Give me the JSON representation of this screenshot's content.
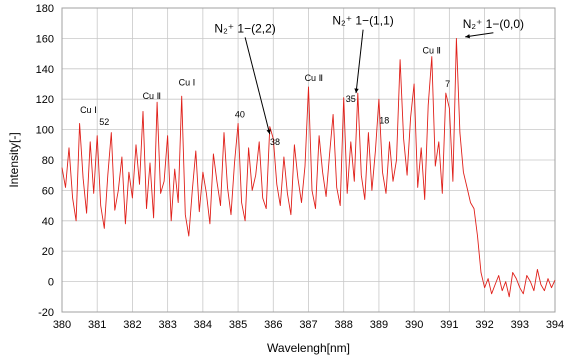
{
  "chart_data": {
    "type": "line",
    "title": "",
    "xlabel": "Wavelengh[nm]",
    "ylabel": "Intensity[-]",
    "xlim": [
      380,
      394
    ],
    "ylim": [
      -20,
      180
    ],
    "xticks": [
      380,
      381,
      382,
      383,
      384,
      385,
      386,
      387,
      388,
      389,
      390,
      391,
      392,
      393,
      394
    ],
    "yticks": [
      -20,
      0,
      20,
      40,
      60,
      80,
      100,
      120,
      140,
      160,
      180
    ],
    "grid": true,
    "legend": "none",
    "series_color": "#e0201a",
    "series": [
      {
        "name": "",
        "x": [
          380.0,
          380.1,
          380.2,
          380.3,
          380.4,
          380.5,
          380.6,
          380.7,
          380.8,
          380.9,
          381.0,
          381.1,
          381.2,
          381.3,
          381.4,
          381.5,
          381.6,
          381.7,
          381.8,
          381.9,
          382.0,
          382.1,
          382.2,
          382.3,
          382.4,
          382.5,
          382.6,
          382.7,
          382.8,
          382.9,
          383.0,
          383.1,
          383.2,
          383.3,
          383.4,
          383.5,
          383.6,
          383.7,
          383.8,
          383.9,
          384.0,
          384.1,
          384.2,
          384.3,
          384.4,
          384.5,
          384.6,
          384.7,
          384.8,
          384.9,
          385.0,
          385.1,
          385.2,
          385.3,
          385.4,
          385.5,
          385.6,
          385.7,
          385.8,
          385.9,
          386.0,
          386.1,
          386.2,
          386.3,
          386.4,
          386.5,
          386.6,
          386.7,
          386.8,
          386.9,
          387.0,
          387.1,
          387.2,
          387.3,
          387.4,
          387.5,
          387.6,
          387.7,
          387.8,
          387.9,
          388.0,
          388.1,
          388.2,
          388.3,
          388.4,
          388.5,
          388.6,
          388.7,
          388.8,
          388.9,
          389.0,
          389.1,
          389.2,
          389.3,
          389.4,
          389.5,
          389.6,
          389.7,
          389.8,
          389.9,
          390.0,
          390.1,
          390.2,
          390.3,
          390.4,
          390.5,
          390.6,
          390.7,
          390.8,
          390.9,
          391.0,
          391.1,
          391.2,
          391.3,
          391.4,
          391.5,
          391.6,
          391.7,
          391.8,
          391.9,
          392.0,
          392.1,
          392.2,
          392.3,
          392.4,
          392.5,
          392.6,
          392.7,
          392.8,
          392.9,
          393.0,
          393.1,
          393.2,
          393.3,
          393.4,
          393.5,
          393.6,
          393.7,
          393.8,
          393.9,
          394.0
        ],
        "y": [
          75,
          62,
          88,
          55,
          40,
          104,
          68,
          45,
          92,
          58,
          96,
          50,
          35,
          70,
          98,
          47,
          60,
          82,
          38,
          72,
          55,
          90,
          64,
          112,
          48,
          78,
          42,
          118,
          58,
          66,
          96,
          40,
          74,
          52,
          122,
          44,
          30,
          60,
          86,
          46,
          72,
          58,
          38,
          84,
          66,
          50,
          98,
          62,
          44,
          78,
          104,
          52,
          40,
          88,
          60,
          70,
          92,
          55,
          48,
          102,
          94,
          64,
          50,
          82,
          58,
          44,
          90,
          68,
          52,
          76,
          128,
          60,
          48,
          96,
          72,
          56,
          84,
          110,
          62,
          50,
          121,
          58,
          92,
          66,
          124,
          70,
          54,
          98,
          60,
          86,
          120,
          72,
          58,
          92,
          66,
          80,
          146,
          94,
          70,
          108,
          130,
          62,
          88,
          54,
          116,
          148,
          76,
          92,
          58,
          124,
          114,
          66,
          160,
          98,
          72,
          62,
          52,
          48,
          30,
          6,
          -4,
          2,
          -8,
          -2,
          4,
          -6,
          0,
          -10,
          6,
          2,
          -4,
          -8,
          4,
          0,
          -6,
          8,
          -2,
          -6,
          2,
          -4,
          1
        ]
      }
    ],
    "annotations": [
      {
        "label": "Cu Ⅰ",
        "x": 380.75,
        "y": 111
      },
      {
        "label": "52",
        "x": 381.2,
        "y": 103
      },
      {
        "label": "Cu Ⅱ",
        "x": 382.55,
        "y": 120
      },
      {
        "label": "Cu Ⅰ",
        "x": 383.55,
        "y": 129
      },
      {
        "label": "40",
        "x": 385.05,
        "y": 108
      },
      {
        "label": "38",
        "x": 386.05,
        "y": 90
      },
      {
        "label": "Cu Ⅱ",
        "x": 387.15,
        "y": 132
      },
      {
        "label": "35",
        "x": 388.2,
        "y": 118
      },
      {
        "label": "18",
        "x": 389.15,
        "y": 104
      },
      {
        "label": "Cu Ⅱ",
        "x": 390.5,
        "y": 150
      },
      {
        "label": "7",
        "x": 390.95,
        "y": 128
      }
    ],
    "band_labels": [
      {
        "label": "N₂⁺ 1−(2,2)",
        "x": 385.2,
        "y": 164,
        "arrow_to": [
          385.9,
          97
        ]
      },
      {
        "label": "N₂⁺ 1−(1,1)",
        "x": 388.55,
        "y": 169,
        "arrow_to": [
          388.35,
          124
        ]
      },
      {
        "label": "N₂⁺ 1−(0,0)",
        "x": 392.25,
        "y": 167,
        "arrow_to": [
          391.45,
          161
        ]
      }
    ]
  }
}
